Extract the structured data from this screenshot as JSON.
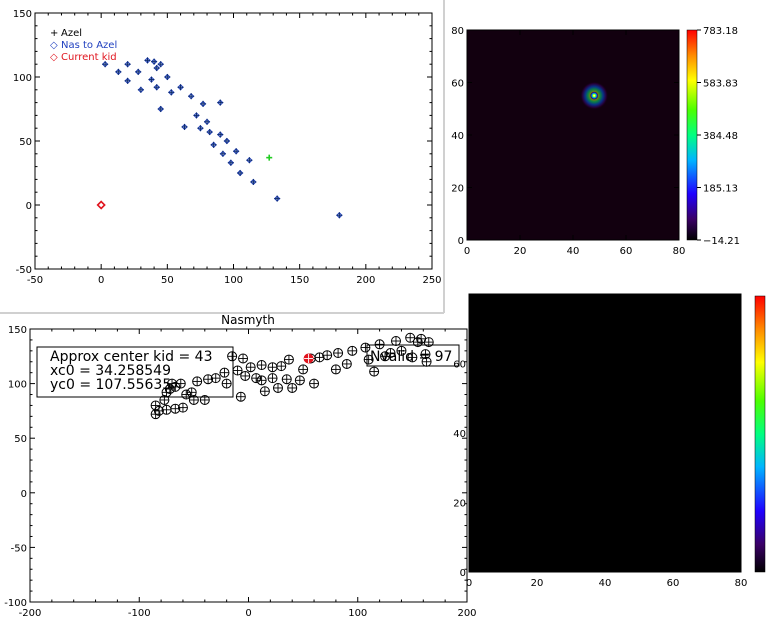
{
  "chart_data": [
    {
      "type": "scatter",
      "panel": "azel",
      "title": "",
      "xlim": [
        -50,
        250
      ],
      "ylim": [
        -50,
        150
      ],
      "xticks": [
        -50,
        0,
        50,
        100,
        150,
        200,
        250
      ],
      "yticks": [
        -50,
        0,
        50,
        100,
        150
      ],
      "legend": {
        "placement": "top-left",
        "entries": [
          {
            "symbol": "+",
            "label": "Azel",
            "color": "#000000"
          },
          {
            "symbol": "◇",
            "label": "Nas to Azel",
            "color": "#1f3fbf"
          },
          {
            "symbol": "◇",
            "label": "Current kid",
            "color": "#e0141e"
          }
        ]
      },
      "series": [
        {
          "marker": "plus-diamond",
          "color": "#0b2a6a",
          "points": [
            [
              3,
              110
            ],
            [
              13,
              104
            ],
            [
              20,
              110
            ],
            [
              28,
              104
            ],
            [
              20,
              97
            ],
            [
              35,
              113
            ],
            [
              30,
              90
            ],
            [
              38,
              98
            ],
            [
              45,
              110
            ],
            [
              40,
              112
            ],
            [
              42,
              107
            ],
            [
              50,
              100
            ],
            [
              42,
              92
            ],
            [
              53,
              88
            ],
            [
              60,
              92
            ],
            [
              45,
              75
            ],
            [
              68,
              85
            ],
            [
              63,
              61
            ],
            [
              77,
              79
            ],
            [
              72,
              70
            ],
            [
              80,
              65
            ],
            [
              90,
              80
            ],
            [
              82,
              57
            ],
            [
              75,
              60
            ],
            [
              85,
              47
            ],
            [
              90,
              55
            ],
            [
              95,
              50
            ],
            [
              102,
              42
            ],
            [
              92,
              40
            ],
            [
              98,
              33
            ],
            [
              112,
              35
            ],
            [
              105,
              25
            ],
            [
              115,
              18
            ],
            [
              133,
              5
            ],
            [
              180,
              -8
            ]
          ]
        },
        {
          "marker": "plus",
          "color": "#22cc22",
          "points": [
            [
              127,
              37
            ]
          ]
        },
        {
          "marker": "diamond",
          "color": "#e0141e",
          "points": [
            [
              0,
              0
            ]
          ]
        }
      ]
    },
    {
      "type": "heatmap",
      "panel": "beam-map",
      "xlim": [
        0,
        80
      ],
      "ylim": [
        0,
        80
      ],
      "xticks": [
        0,
        20,
        40,
        60,
        80
      ],
      "yticks": [
        0,
        20,
        40,
        60,
        80
      ],
      "peak": {
        "x": 48,
        "y": 55,
        "value": 783.18
      },
      "colorbar": {
        "min": -14.21,
        "max": 783.18,
        "ticks": [
          "783.18",
          "583.83",
          "384.48",
          "185.13",
          "-14.21"
        ],
        "tick_values": [
          783.18,
          583.83,
          384.48,
          185.13,
          -14.21
        ]
      }
    },
    {
      "type": "scatter",
      "panel": "nasmyth",
      "title": "Nasmyth",
      "xlim": [
        -200,
        200
      ],
      "ylim": [
        -100,
        150
      ],
      "xticks": [
        -200,
        -100,
        0,
        100,
        200
      ],
      "yticks": [
        -100,
        -50,
        0,
        50,
        100,
        150
      ],
      "annotations": [
        {
          "lines": [
            "Approx center kid = 43",
            "xc0 = 34.258549",
            "yc0 = 107.55635"
          ]
        },
        {
          "lines": [
            "Nvalid = 97"
          ]
        }
      ],
      "series": [
        {
          "marker": "circle-plus",
          "color": "#000000",
          "points": [
            [
              -85,
              80
            ],
            [
              -85,
              72
            ],
            [
              -82,
              75
            ],
            [
              -77,
              85
            ],
            [
              -75,
              92
            ],
            [
              -72,
              95
            ],
            [
              -70,
              100
            ],
            [
              -67,
              97
            ],
            [
              -62,
              100
            ],
            [
              -75,
              76
            ],
            [
              -67,
              77
            ],
            [
              -60,
              78
            ],
            [
              -57,
              90
            ],
            [
              -52,
              92
            ],
            [
              -47,
              102
            ],
            [
              -37,
              104
            ],
            [
              -30,
              105
            ],
            [
              -22,
              110
            ],
            [
              -20,
              100
            ],
            [
              -10,
              112
            ],
            [
              -5,
              123
            ],
            [
              -3,
              107
            ],
            [
              -7,
              88
            ],
            [
              2,
              115
            ],
            [
              7,
              105
            ],
            [
              12,
              103
            ],
            [
              12,
              117
            ],
            [
              15,
              93
            ],
            [
              22,
              105
            ],
            [
              22,
              115
            ],
            [
              27,
              96
            ],
            [
              30,
              116
            ],
            [
              35,
              104
            ],
            [
              37,
              122
            ],
            [
              40,
              96
            ],
            [
              47,
              103
            ],
            [
              50,
              113
            ],
            [
              57,
              123
            ],
            [
              60,
              100
            ],
            [
              65,
              124
            ],
            [
              72,
              126
            ],
            [
              80,
              113
            ],
            [
              82,
              128
            ],
            [
              90,
              118
            ],
            [
              95,
              130
            ],
            [
              107,
              133
            ],
            [
              110,
              122
            ],
            [
              115,
              111
            ],
            [
              120,
              136
            ],
            [
              125,
              125
            ],
            [
              130,
              128
            ],
            [
              135,
              139
            ],
            [
              140,
              130
            ],
            [
              148,
              142
            ],
            [
              150,
              124
            ],
            [
              155,
              138
            ],
            [
              158,
              141
            ],
            [
              162,
              127
            ],
            [
              163,
              120
            ],
            [
              165,
              138
            ],
            [
              -40,
              85
            ],
            [
              -50,
              85
            ],
            [
              -15,
              125
            ]
          ]
        },
        {
          "marker": "circle-plus-filled",
          "color": "#e0141e",
          "points": [
            [
              55,
              123
            ]
          ]
        }
      ]
    },
    {
      "type": "heatmap",
      "panel": "empty-map",
      "xlim": [
        0,
        80
      ],
      "ylim": [
        0,
        80
      ],
      "xticks": [
        0,
        20,
        40,
        60,
        80
      ],
      "yticks": [
        0,
        20,
        40,
        60
      ],
      "colorbar": {
        "min": null,
        "max": null,
        "ticks": []
      }
    }
  ]
}
